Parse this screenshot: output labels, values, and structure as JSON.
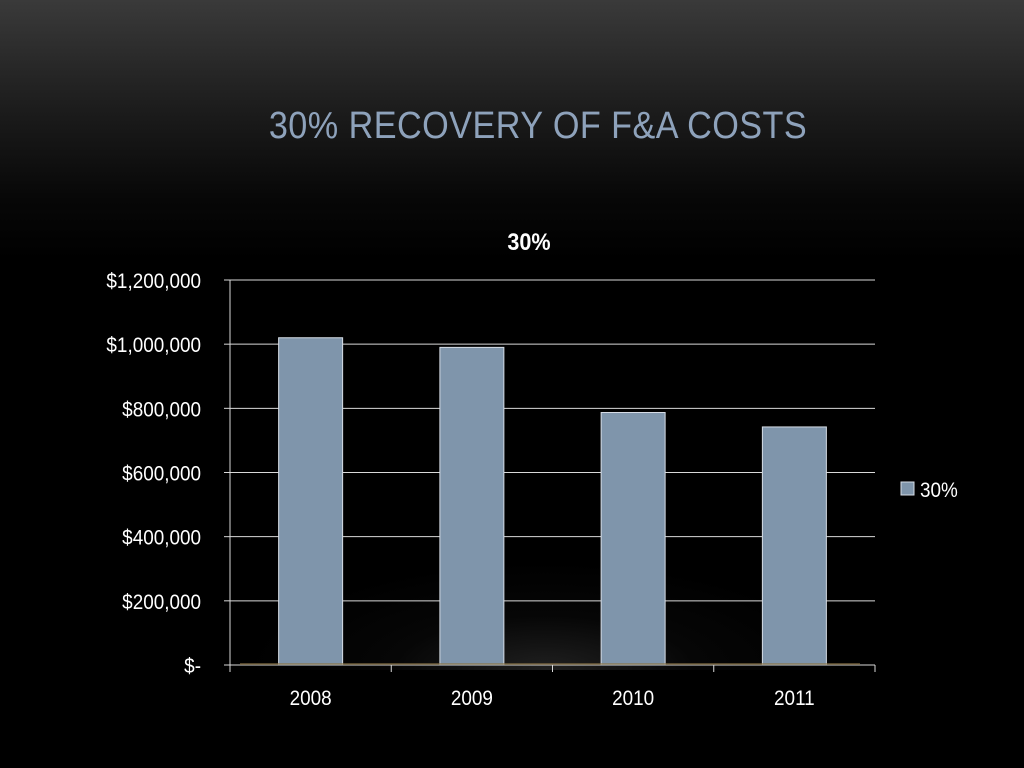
{
  "slide": {
    "title": "30% Recovery of F&A Costs"
  },
  "colors": {
    "bar": "#7f95ab",
    "title": "#8ea2bb",
    "grid": "#d9d9d9",
    "text": "#ffffff"
  },
  "chart_data": {
    "type": "bar",
    "title": "30%",
    "categories": [
      "2008",
      "2009",
      "2010",
      "2011"
    ],
    "series": [
      {
        "name": "30%",
        "values": [
          1020000,
          990000,
          787000,
          742000
        ]
      }
    ],
    "ylim": [
      0,
      1200000
    ],
    "yticks": [
      {
        "value": 0,
        "label": "$-"
      },
      {
        "value": 200000,
        "label": "$200,000"
      },
      {
        "value": 400000,
        "label": "$400,000"
      },
      {
        "value": 600000,
        "label": "$600,000"
      },
      {
        "value": 800000,
        "label": "$800,000"
      },
      {
        "value": 1000000,
        "label": "$1,000,000"
      },
      {
        "value": 1200000,
        "label": "$1,200,000"
      }
    ],
    "grid": true,
    "legend": "right"
  }
}
